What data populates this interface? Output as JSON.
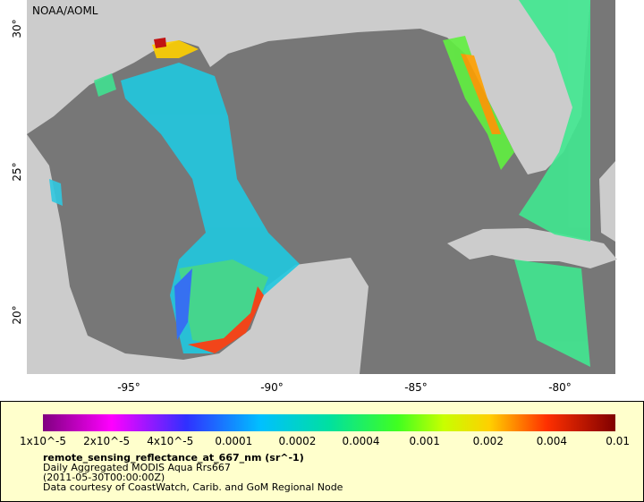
{
  "header": {
    "source": "NOAA/AOML"
  },
  "axes": {
    "x_labels": [
      "-95°",
      "-90°",
      "-85°",
      "-80°"
    ],
    "y_labels": [
      "30°",
      "25°",
      "20°"
    ]
  },
  "legend": {
    "scale_labels": [
      "1x10^-5",
      "2x10^-5",
      "4x10^-5",
      "0.0001",
      "0.0002",
      "0.0004",
      "0.001",
      "0.002",
      "0.004",
      "0.01"
    ],
    "variable": "remote_sensing_reflectance_at_667_nm (sr^-1)",
    "lines": [
      "Daily Aggregated MODIS Aqua Rrs667",
      "(2011-05-30T00:00:00Z)",
      "Data courtesy of CoastWatch, Carib. and GoM Regional Node"
    ]
  }
}
